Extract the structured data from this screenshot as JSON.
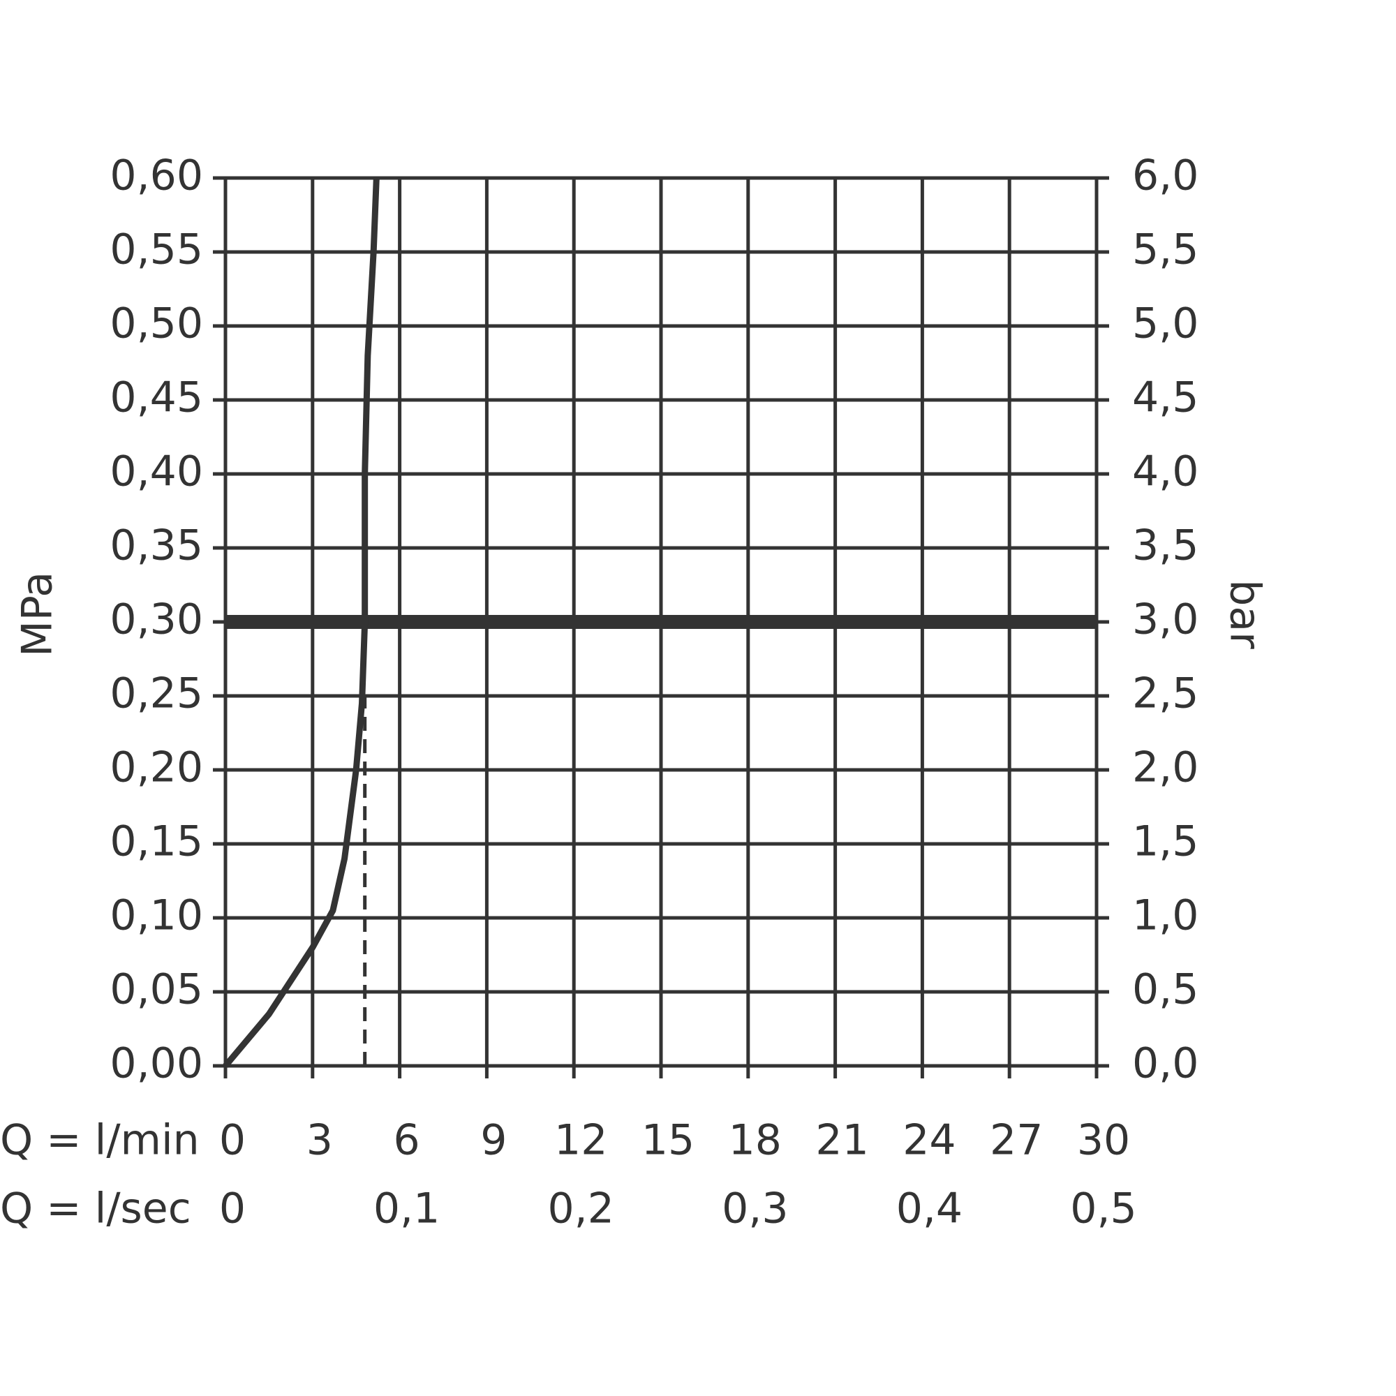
{
  "chart_data": {
    "type": "line",
    "y_label": "MPa",
    "y2_label": "bar",
    "x_label": "Q = l/min",
    "x2_label": "Q = l/sec",
    "series": [
      {
        "color": "#333333",
        "x": [
          0,
          1.5,
          3,
          3.7,
          4.1,
          4.5,
          4.7,
          4.8,
          4.8,
          4.8,
          4.9,
          5.1,
          5.2
        ],
        "values": [
          0,
          0.035,
          0.08,
          0.105,
          0.14,
          0.2,
          0.245,
          0.3,
          0.35,
          0.4,
          0.48,
          0.55,
          0.6
        ]
      }
    ],
    "reference_line": 0.3,
    "marker_line": {
      "x": 4.8,
      "y": 0.25
    },
    "xlim": [
      0,
      30
    ],
    "xticks": [
      0,
      3,
      6,
      9,
      12,
      15,
      18,
      21,
      24,
      27,
      30
    ],
    "x2lim": [
      0,
      0.5
    ],
    "x2ticks": [
      0,
      {
        "value": 0.1,
        "label": "0,1"
      },
      {
        "value": 0.2,
        "label": "0,2"
      },
      {
        "value": 0.3,
        "label": "0,3"
      },
      {
        "value": 0.4,
        "label": "0,4"
      },
      {
        "value": 0.5,
        "label": "0,5"
      }
    ],
    "ylim": [
      0,
      0.6
    ],
    "yticks": [
      {
        "value": 0,
        "label": "0,00"
      },
      {
        "value": 0.05,
        "label": "0,05"
      },
      {
        "value": 0.1,
        "label": "0,10"
      },
      {
        "value": 0.15,
        "label": "0,15"
      },
      {
        "value": 0.2,
        "label": "0,20"
      },
      {
        "value": 0.25,
        "label": "0,25"
      },
      {
        "value": 0.3,
        "label": "0,30"
      },
      {
        "value": 0.35,
        "label": "0,35"
      },
      {
        "value": 0.4,
        "label": "0,40"
      },
      {
        "value": 0.45,
        "label": "0,45"
      },
      {
        "value": 0.5,
        "label": "0,50"
      },
      {
        "value": 0.55,
        "label": "0,55"
      },
      {
        "value": 0.6,
        "label": "0,60"
      }
    ],
    "y2lim": [
      0,
      6
    ],
    "y2ticks": [
      {
        "value": 0,
        "label": "0,0"
      },
      {
        "value": 0.5,
        "label": "0,5"
      },
      {
        "value": 1,
        "label": "1,0"
      },
      {
        "value": 1.5,
        "label": "1,5"
      },
      {
        "value": 2,
        "label": "2,0"
      },
      {
        "value": 2.5,
        "label": "2,5"
      },
      {
        "value": 3,
        "label": "3,0"
      },
      {
        "value": 3.5,
        "label": "3,5"
      },
      {
        "value": 4,
        "label": "4,0"
      },
      {
        "value": 4.5,
        "label": "4,5"
      },
      {
        "value": 5,
        "label": "5,0"
      },
      {
        "value": 5.5,
        "label": "5,5"
      },
      {
        "value": 6,
        "label": "6,0"
      }
    ],
    "grid": true
  }
}
